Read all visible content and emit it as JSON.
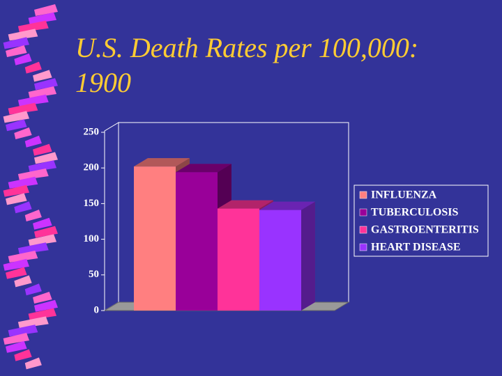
{
  "chart_data": {
    "type": "bar3d",
    "title": "U.S. Death Rates per 100,000: 1900",
    "categories": [
      null
    ],
    "series": [
      {
        "name": "INFLUENZA",
        "color": "#ff7f80",
        "values": [
          202
        ]
      },
      {
        "name": "TUBERCULOSIS",
        "color": "#990099",
        "values": [
          194
        ]
      },
      {
        "name": "GASTROENTERITIS",
        "color": "#ff3399",
        "values": [
          143
        ]
      },
      {
        "name": "HEART DISEASE",
        "color": "#9933ff",
        "values": [
          141
        ]
      }
    ],
    "ylim": [
      0,
      250
    ],
    "yticks": [
      0,
      50,
      100,
      150,
      200,
      250
    ],
    "grid": false,
    "legend": "right"
  }
}
